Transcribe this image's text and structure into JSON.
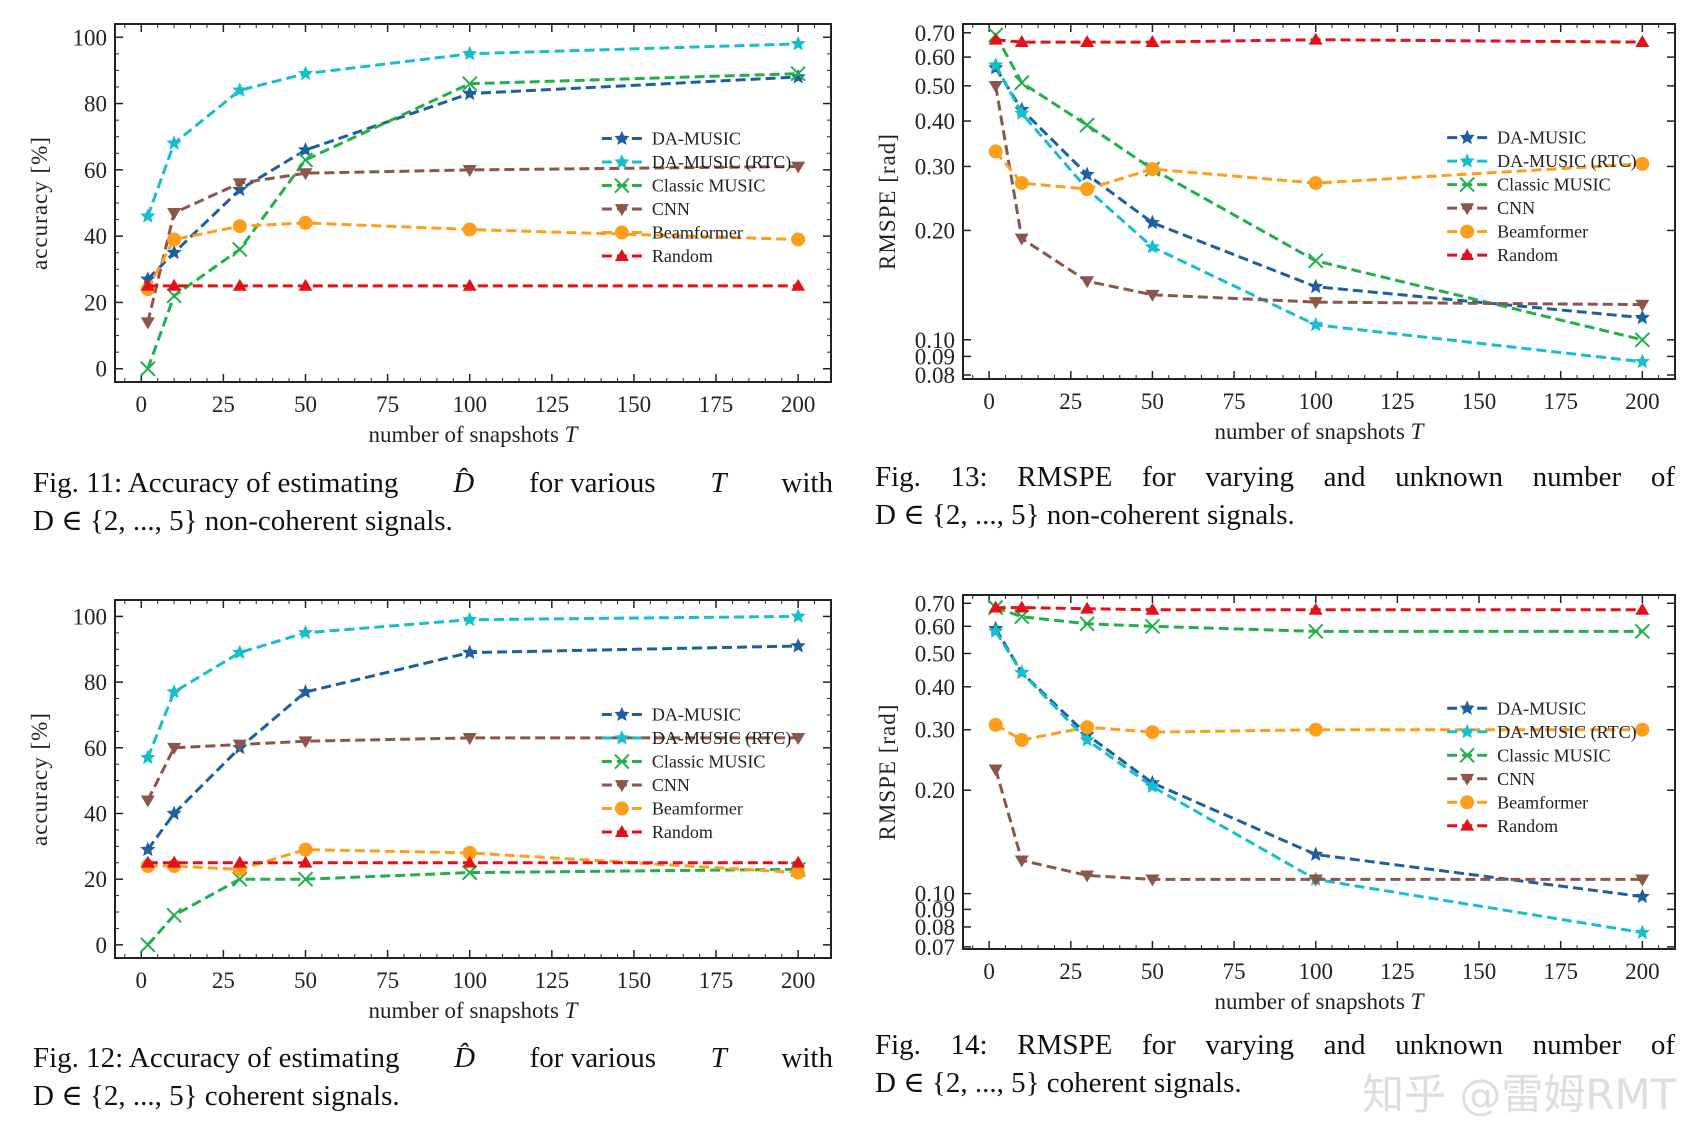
{
  "legend_labels": [
    "DA-MUSIC",
    "DA-MUSIC (RTC)",
    "Classic MUSIC",
    "CNN",
    "Beamformer",
    "Random"
  ],
  "colors": {
    "DA-MUSIC": "#1f5fa0",
    "DA-MUSIC (RTC)": "#17bfcc",
    "Classic MUSIC": "#22b04a",
    "CNN": "#8c564b",
    "Beamformer": "#ff9e1b",
    "Random": "#e3121a"
  },
  "markers": {
    "DA-MUSIC": "star",
    "DA-MUSIC (RTC)": "star",
    "Classic MUSIC": "x",
    "CNN": "triangle-down",
    "Beamformer": "circle",
    "Random": "triangle-up"
  },
  "chart_data": [
    {
      "id": "fig11",
      "type": "line",
      "xlabel": "number of snapshots T",
      "ylabel": "accuracy [%]",
      "yscale": "linear",
      "x": [
        2,
        10,
        30,
        50,
        100,
        200
      ],
      "xlim": [
        -8,
        210
      ],
      "ylim": [
        -4,
        104
      ],
      "xticks": [
        0,
        25,
        50,
        75,
        100,
        125,
        150,
        175,
        200
      ],
      "yticks": [
        0,
        20,
        40,
        60,
        80,
        100
      ],
      "ytick_labels": [
        "0",
        "20",
        "40",
        "60",
        "80",
        "100"
      ],
      "legend": "center-right",
      "series": [
        {
          "name": "DA-MUSIC",
          "values": [
            27,
            35,
            54,
            66,
            83,
            88
          ]
        },
        {
          "name": "DA-MUSIC (RTC)",
          "values": [
            46,
            68,
            84,
            89,
            95,
            98
          ]
        },
        {
          "name": "Classic MUSIC",
          "values": [
            0,
            22,
            36,
            63,
            86,
            89
          ]
        },
        {
          "name": "CNN",
          "values": [
            14,
            47,
            56,
            59,
            60,
            61
          ]
        },
        {
          "name": "Beamformer",
          "values": [
            24,
            39,
            43,
            44,
            42,
            39
          ]
        },
        {
          "name": "Random",
          "values": [
            25,
            25,
            25,
            25,
            25,
            25
          ]
        }
      ]
    },
    {
      "id": "fig13",
      "type": "line",
      "xlabel": "number of snapshots T",
      "ylabel": "RMSPE [rad]",
      "yscale": "log",
      "x": [
        2,
        10,
        30,
        50,
        100,
        200
      ],
      "xlim": [
        -8,
        210
      ],
      "ylim": [
        0.078,
        0.74
      ],
      "xticks": [
        0,
        25,
        50,
        75,
        100,
        125,
        150,
        175,
        200
      ],
      "yticks": [
        0.08,
        0.09,
        0.1,
        0.2,
        0.3,
        0.4,
        0.5,
        0.6,
        0.7
      ],
      "ytick_labels": [
        "0.08",
        "0.09",
        "0.10",
        "0.20",
        "0.30",
        "0.40",
        "0.50",
        "0.60",
        "0.70"
      ],
      "legend": "center-right",
      "series": [
        {
          "name": "DA-MUSIC",
          "values": [
            0.56,
            0.43,
            0.285,
            0.21,
            0.14,
            0.115
          ]
        },
        {
          "name": "DA-MUSIC (RTC)",
          "values": [
            0.57,
            0.42,
            0.26,
            0.18,
            0.11,
            0.087
          ]
        },
        {
          "name": "Classic MUSIC",
          "values": [
            0.69,
            0.51,
            0.39,
            0.295,
            0.165,
            0.1
          ]
        },
        {
          "name": "CNN",
          "values": [
            0.5,
            0.19,
            0.145,
            0.133,
            0.127,
            0.125
          ]
        },
        {
          "name": "Beamformer",
          "values": [
            0.33,
            0.27,
            0.26,
            0.295,
            0.27,
            0.305
          ]
        },
        {
          "name": "Random",
          "values": [
            0.67,
            0.66,
            0.66,
            0.66,
            0.67,
            0.66
          ]
        }
      ]
    },
    {
      "id": "fig12",
      "type": "line",
      "xlabel": "number of snapshots T",
      "ylabel": "accuracy [%]",
      "yscale": "linear",
      "x": [
        2,
        10,
        30,
        50,
        100,
        200
      ],
      "xlim": [
        -8,
        210
      ],
      "ylim": [
        -4,
        105
      ],
      "xticks": [
        0,
        25,
        50,
        75,
        100,
        125,
        150,
        175,
        200
      ],
      "yticks": [
        0,
        20,
        40,
        60,
        80,
        100
      ],
      "ytick_labels": [
        "0",
        "20",
        "40",
        "60",
        "80",
        "100"
      ],
      "legend": "center-right",
      "series": [
        {
          "name": "DA-MUSIC",
          "values": [
            29,
            40,
            60,
            77,
            89,
            91
          ]
        },
        {
          "name": "DA-MUSIC (RTC)",
          "values": [
            57,
            77,
            89,
            95,
            99,
            100
          ]
        },
        {
          "name": "Classic MUSIC",
          "values": [
            0,
            9,
            20,
            20,
            22,
            23
          ]
        },
        {
          "name": "CNN",
          "values": [
            44,
            60,
            61,
            62,
            63,
            63
          ]
        },
        {
          "name": "Beamformer",
          "values": [
            24,
            24,
            23,
            29,
            28,
            22
          ]
        },
        {
          "name": "Random",
          "values": [
            25,
            25,
            25,
            25,
            25,
            25
          ]
        }
      ]
    },
    {
      "id": "fig14",
      "type": "line",
      "xlabel": "number of snapshots T",
      "ylabel": "RMSPE [rad]",
      "yscale": "log",
      "x": [
        2,
        10,
        30,
        50,
        100,
        200
      ],
      "xlim": [
        -8,
        210
      ],
      "ylim": [
        0.069,
        0.74
      ],
      "xticks": [
        0,
        25,
        50,
        75,
        100,
        125,
        150,
        175,
        200
      ],
      "yticks": [
        0.07,
        0.08,
        0.09,
        0.1,
        0.2,
        0.3,
        0.4,
        0.5,
        0.6,
        0.7
      ],
      "ytick_labels": [
        "0.07",
        "0.08",
        "0.09",
        "0.10",
        "0.20",
        "0.30",
        "0.40",
        "0.50",
        "0.60",
        "0.70"
      ],
      "legend": "center-right",
      "series": [
        {
          "name": "DA-MUSIC",
          "values": [
            0.59,
            0.44,
            0.29,
            0.21,
            0.13,
            0.098
          ]
        },
        {
          "name": "DA-MUSIC (RTC)",
          "values": [
            0.58,
            0.44,
            0.28,
            0.205,
            0.11,
            0.077
          ]
        },
        {
          "name": "Classic MUSIC",
          "values": [
            0.68,
            0.64,
            0.61,
            0.6,
            0.58,
            0.58
          ]
        },
        {
          "name": "CNN",
          "values": [
            0.23,
            0.125,
            0.113,
            0.11,
            0.11,
            0.11
          ]
        },
        {
          "name": "Beamformer",
          "values": [
            0.31,
            0.28,
            0.305,
            0.295,
            0.3,
            0.3
          ]
        },
        {
          "name": "Random",
          "values": [
            0.68,
            0.68,
            0.675,
            0.67,
            0.67,
            0.67
          ]
        }
      ]
    }
  ],
  "captions": {
    "fig11": {
      "prefix": "Fig. 11: Accuracy of estimating ",
      "sym": "D̂",
      "mid": " for various ",
      "T": "T",
      "suffix": " with",
      "line2": "D ∈ {2, ..., 5} non-coherent signals."
    },
    "fig13": {
      "line1": "Fig. 13: RMSPE for varying and unknown number of",
      "line2": "D ∈ {2, ..., 5} non-coherent signals."
    },
    "fig12": {
      "prefix": "Fig. 12: Accuracy of estimating ",
      "sym": "D̂",
      "mid": " for various ",
      "T": "T",
      "suffix": " with",
      "line2": "D ∈ {2, ..., 5} coherent signals."
    },
    "fig14": {
      "line1": "Fig. 14: RMSPE for varying and unknown number of",
      "line2": "D ∈ {2, ..., 5} coherent signals."
    }
  },
  "watermark": "知乎 @雷姆RMT"
}
